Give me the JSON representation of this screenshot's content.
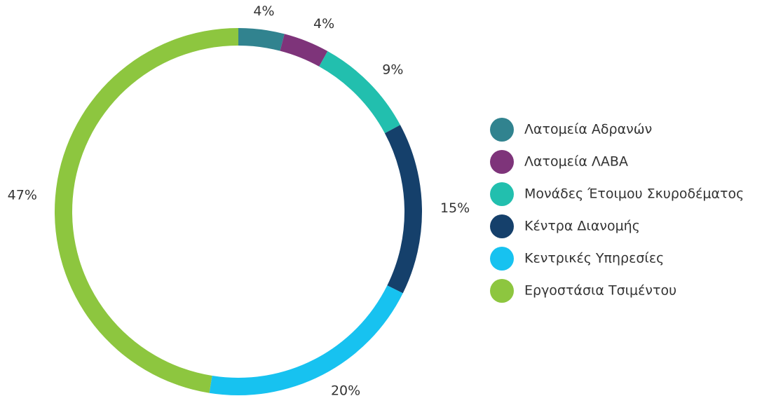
{
  "chart_data": {
    "type": "donut",
    "categories": [
      "Λατομεία Αδρανών",
      "Λατομεία ΛΑΒΑ",
      "Μονάδες Έτοιμου Σκυροδέματος",
      "Κέντρα Διανομής",
      "Κεντρικές Υπηρεσίες",
      "Εργοστάσια Τσιμέντου"
    ],
    "values": [
      4,
      4,
      9,
      15,
      20,
      47
    ],
    "value_labels": [
      "4%",
      "4%",
      "9%",
      "15%",
      "20%",
      "47%"
    ],
    "colors": [
      "#31838f",
      "#7e347a",
      "#22bfae",
      "#15406b",
      "#17c2f0",
      "#8dc63f"
    ],
    "legend": "right"
  }
}
